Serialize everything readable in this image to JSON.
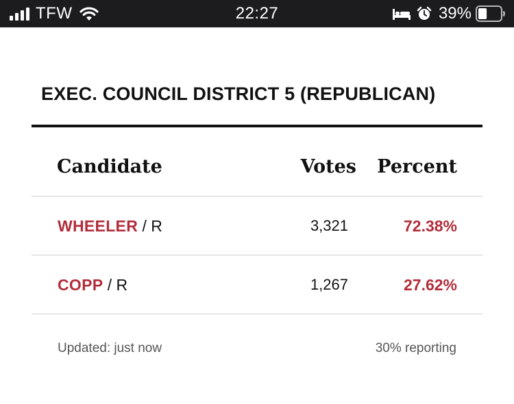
{
  "status_bar": {
    "carrier": "TFW",
    "time": "22:27",
    "battery_percent": "39%",
    "battery_level": 0.39,
    "icons": [
      "signal-bars-icon",
      "wifi-icon",
      "bed-icon",
      "alarm-clock-icon",
      "battery-icon"
    ]
  },
  "race": {
    "title": "EXEC. COUNCIL DISTRICT 5 (REPUBLICAN)"
  },
  "table": {
    "headers": {
      "candidate": "Candidate",
      "votes": "Votes",
      "percent": "Percent"
    },
    "rows": [
      {
        "name": "WHEELER",
        "party": " / R",
        "votes": "3,321",
        "percent": "72.38%"
      },
      {
        "name": "COPP",
        "party": " / R",
        "votes": "1,267",
        "percent": "27.62%"
      }
    ]
  },
  "footer": {
    "updated": "Updated: just now",
    "reporting": "30% reporting"
  },
  "colors": {
    "status_bar_bg": "#1c1c1e",
    "accent_red": "#b22d3a",
    "rule": "#111111",
    "divider": "#cfcfcf"
  }
}
